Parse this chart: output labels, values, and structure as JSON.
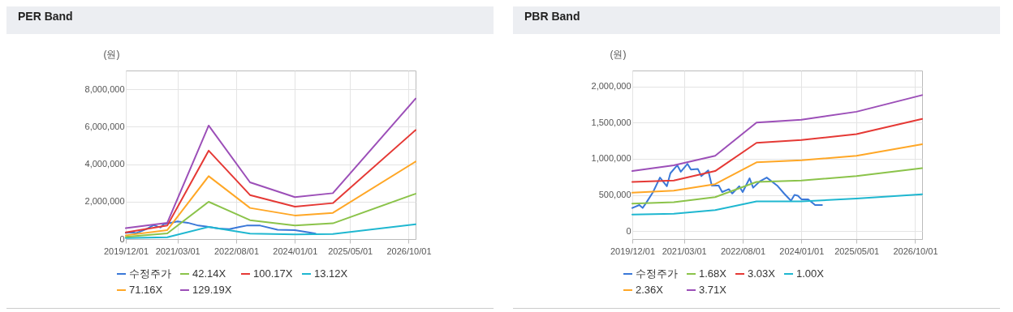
{
  "chart_data": [
    {
      "type": "line",
      "title": "PER Band",
      "ylabel": "(원)",
      "x": [
        "2019-12-01",
        "2020-12-01",
        "2021-12-01",
        "2022-12-01",
        "2024-01-01",
        "2024-12-01",
        "2026-12-01"
      ],
      "xlim": [
        "2019-12-01",
        "2026-12-01"
      ],
      "xticks": [
        {
          "value": "2019-12-01",
          "label": "2019/12/01"
        },
        {
          "value": "2021-03-01",
          "label": "2021/03/01"
        },
        {
          "value": "2022-08-01",
          "label": "2022/08/01"
        },
        {
          "value": "2024-01-01",
          "label": "2024/01/01"
        },
        {
          "value": "2025-05-01",
          "label": "2025/05/01"
        },
        {
          "value": "2026-10-01",
          "label": "2026/10/01"
        }
      ],
      "ylim": [
        0,
        9000000
      ],
      "yticks": [
        0,
        {
          "value": 2000000,
          "label": "2,000,000"
        },
        {
          "value": 4000000,
          "label": "4,000,000"
        },
        {
          "value": 6000000,
          "label": "6,000,000"
        },
        {
          "value": 8000000,
          "label": "8,000,000"
        }
      ],
      "grid": true,
      "legend": "bottom",
      "series": [
        {
          "name": "수정주가",
          "color": "#3a78d8",
          "x": [
            "2019-12-01",
            "2020-02-01",
            "2020-03-01",
            "2020-04-01",
            "2020-06-01",
            "2020-08-01",
            "2020-10-01",
            "2020-11-01",
            "2021-01-01",
            "2021-03-01",
            "2021-06-01",
            "2021-09-01",
            "2021-12-01",
            "2022-03-01",
            "2022-06-01",
            "2022-09-01",
            "2022-11-01",
            "2023-03-01",
            "2023-08-01",
            "2024-01-01",
            "2024-05-01",
            "2024-07-01"
          ],
          "values": [
            330000,
            360000,
            320000,
            390000,
            540000,
            740000,
            620000,
            800000,
            870000,
            940000,
            870000,
            720000,
            650000,
            560000,
            530000,
            650000,
            720000,
            720000,
            500000,
            480000,
            360000,
            290000
          ]
        },
        {
          "name": "13.12X",
          "color": "#1fb7d0",
          "values": [
            50000,
            100000,
            650000,
            290000,
            250000,
            270000,
            790000
          ]
        },
        {
          "name": "42.14X",
          "color": "#8bc34a",
          "values": [
            120000,
            300000,
            1990000,
            1010000,
            720000,
            840000,
            2420000
          ]
        },
        {
          "name": "71.16X",
          "color": "#ffa726",
          "values": [
            200000,
            480000,
            3360000,
            1660000,
            1260000,
            1400000,
            4140000
          ]
        },
        {
          "name": "100.17X",
          "color": "#e53935",
          "values": [
            360000,
            720000,
            4720000,
            2350000,
            1730000,
            1920000,
            5820000
          ]
        },
        {
          "name": "129.19X",
          "color": "#9c4fb8",
          "values": [
            580000,
            870000,
            6060000,
            3030000,
            2240000,
            2450000,
            7500000
          ]
        }
      ]
    },
    {
      "type": "line",
      "title": "PBR Band",
      "ylabel": "(원)",
      "x": [
        "2019-12-01",
        "2020-12-01",
        "2021-12-01",
        "2022-12-01",
        "2024-01-01",
        "2025-05-01",
        "2026-12-01"
      ],
      "xlim": [
        "2019-12-01",
        "2026-12-01"
      ],
      "xticks": [
        {
          "value": "2019-12-01",
          "label": "2019/12/01"
        },
        {
          "value": "2021-03-01",
          "label": "2021/03/01"
        },
        {
          "value": "2022-08-01",
          "label": "2022/08/01"
        },
        {
          "value": "2024-01-01",
          "label": "2024/01/01"
        },
        {
          "value": "2025-05-01",
          "label": "2025/05/01"
        },
        {
          "value": "2026-10-01",
          "label": "2026/10/01"
        }
      ],
      "ylim": [
        -110000,
        2220000
      ],
      "yticks": [
        0,
        {
          "value": 500000,
          "label": "500,000"
        },
        {
          "value": 1000000,
          "label": "1,000,000"
        },
        {
          "value": 1500000,
          "label": "1,500,000"
        },
        {
          "value": 2000000,
          "label": "2,000,000"
        }
      ],
      "grid": true,
      "legend": "bottom",
      "series": [
        {
          "name": "수정주가",
          "color": "#3a78d8",
          "x": [
            "2019-12-01",
            "2020-02-01",
            "2020-03-01",
            "2020-04-01",
            "2020-06-01",
            "2020-08-01",
            "2020-10-01",
            "2020-11-01",
            "2021-01-01",
            "2021-02-01",
            "2021-04-01",
            "2021-05-01",
            "2021-07-01",
            "2021-08-01",
            "2021-10-01",
            "2021-11-01",
            "2022-01-01",
            "2022-02-01",
            "2022-04-01",
            "2022-05-01",
            "2022-07-01",
            "2022-08-01",
            "2022-10-01",
            "2022-11-01",
            "2023-01-01",
            "2023-03-01",
            "2023-06-01",
            "2023-08-01",
            "2023-10-01",
            "2023-11-01",
            "2023-12-01",
            "2024-01-01",
            "2024-03-01",
            "2024-05-01",
            "2024-07-01"
          ],
          "values": [
            320000,
            360000,
            320000,
            390000,
            540000,
            740000,
            620000,
            800000,
            910000,
            820000,
            930000,
            850000,
            860000,
            760000,
            840000,
            630000,
            630000,
            540000,
            580000,
            520000,
            620000,
            540000,
            730000,
            600000,
            690000,
            740000,
            630000,
            520000,
            420000,
            500000,
            490000,
            440000,
            440000,
            360000,
            360000
          ]
        },
        {
          "name": "1.00X",
          "color": "#1fb7d0",
          "values": [
            230000,
            240000,
            290000,
            410000,
            410000,
            450000,
            510000
          ]
        },
        {
          "name": "1.68X",
          "color": "#8bc34a",
          "values": [
            380000,
            400000,
            470000,
            680000,
            700000,
            760000,
            870000
          ]
        },
        {
          "name": "2.36X",
          "color": "#ffa726",
          "values": [
            530000,
            560000,
            650000,
            950000,
            980000,
            1040000,
            1200000
          ]
        },
        {
          "name": "3.03X",
          "color": "#e53935",
          "values": [
            680000,
            700000,
            830000,
            1220000,
            1260000,
            1340000,
            1550000
          ]
        },
        {
          "name": "3.71X",
          "color": "#9c4fb8",
          "values": [
            830000,
            910000,
            1040000,
            1500000,
            1540000,
            1650000,
            1880000
          ]
        }
      ]
    }
  ]
}
